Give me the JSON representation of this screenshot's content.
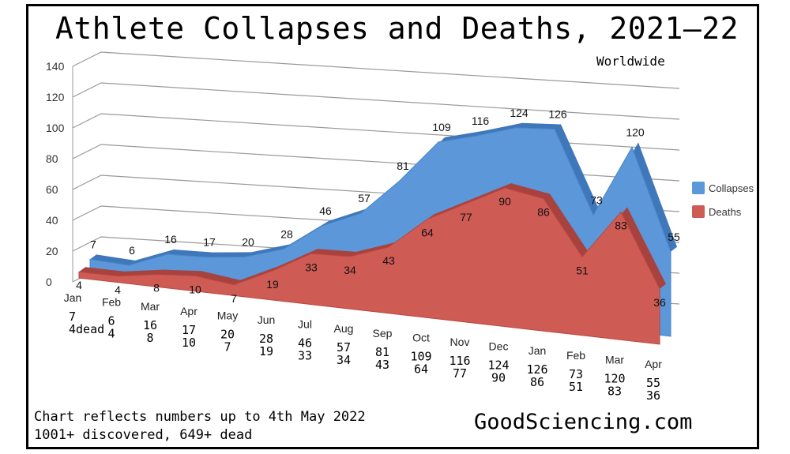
{
  "title": "Athlete Collapses and Deaths, 2021—22",
  "subtitle": "Worldwide",
  "footnote1": "Chart reflects numbers up to 4th May 2022",
  "footnote2": "1001+ discovered, 649+ dead",
  "brand": "GoodSciencing.com",
  "chart_data": {
    "type": "area",
    "title": "Athlete Collapses and Deaths, 2021—22",
    "subtitle": "Worldwide",
    "categories": [
      "Jan",
      "Feb",
      "Mar",
      "Apr",
      "May",
      "Jun",
      "Jul",
      "Aug",
      "Sep",
      "Oct",
      "Nov",
      "Dec",
      "Jan",
      "Feb",
      "Mar",
      "Apr"
    ],
    "series": [
      {
        "name": "Collapses",
        "color": "#5b97d9",
        "values": [
          7,
          6,
          16,
          17,
          20,
          28,
          46,
          57,
          81,
          109,
          116,
          124,
          126,
          73,
          120,
          55
        ]
      },
      {
        "name": "Deaths",
        "color": "#cf5b55",
        "values": [
          4,
          4,
          8,
          10,
          7,
          19,
          33,
          34,
          43,
          64,
          77,
          90,
          86,
          51,
          83,
          36
        ]
      }
    ],
    "bottom_labels": [
      [
        "7",
        "4dead"
      ],
      [
        "6",
        "4"
      ],
      [
        "16",
        "8"
      ],
      [
        "17",
        "10"
      ],
      [
        "20",
        "7"
      ],
      [
        "28",
        "19"
      ],
      [
        "46",
        "33"
      ],
      [
        "57",
        "34"
      ],
      [
        "81",
        "43"
      ],
      [
        "109",
        "64"
      ],
      [
        "116",
        "77"
      ],
      [
        "124",
        "90"
      ],
      [
        "126",
        "86"
      ],
      [
        "73",
        "51"
      ],
      [
        "120",
        "83"
      ],
      [
        "55",
        "36"
      ]
    ],
    "yticks": [
      "0",
      "20",
      "40",
      "60",
      "80",
      "100",
      "120",
      "140"
    ],
    "ylim": [
      0,
      140
    ],
    "legend": "right",
    "grid": true
  }
}
